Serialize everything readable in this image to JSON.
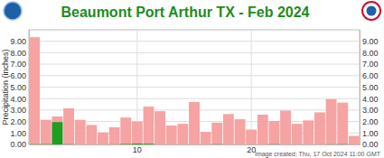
{
  "chart_data": {
    "type": "bar",
    "title": "Beaumont Port Arthur TX - Feb 2024",
    "ylabel": "Precipitation (inches)",
    "annotations": [
      "Image created: Thu, 17 Oct 2024 11:00 GMT"
    ],
    "categories": [
      null,
      null,
      null,
      null,
      null,
      null,
      null,
      null,
      null,
      "10",
      null,
      null,
      null,
      null,
      null,
      null,
      null,
      null,
      null,
      "20",
      null,
      null,
      null,
      null,
      null,
      null,
      null,
      null,
      null
    ],
    "series": [
      {
        "color": "#f5a3a3",
        "values": [
          9.35,
          2.15,
          2.45,
          3.15,
          2.15,
          1.7,
          1.05,
          1.5,
          2.35,
          2.0,
          3.3,
          2.9,
          1.65,
          1.8,
          3.7,
          1.1,
          1.9,
          2.65,
          2.2,
          1.3,
          2.6,
          2.05,
          2.95,
          1.8,
          2.1,
          2.8,
          3.95,
          3.65,
          0.75
        ]
      },
      {
        "color": "#1f9e1f",
        "values": [
          0.02,
          0.03,
          1.95,
          0.02,
          0,
          0,
          0,
          0.01,
          0.04,
          0.08,
          0.06,
          0,
          0,
          0,
          0,
          0,
          0.02,
          0,
          0,
          0,
          0,
          0.02,
          0,
          0,
          0,
          0,
          0.01,
          0.02,
          0
        ]
      }
    ],
    "ylim": [
      0,
      10
    ],
    "yticks": [
      {
        "value": 0,
        "label": "0.00"
      },
      {
        "value": 1,
        "label": "1.00"
      },
      {
        "value": 2,
        "label": "2.00"
      },
      {
        "value": 3,
        "label": "3.00"
      },
      {
        "value": 4,
        "label": "4.00"
      },
      {
        "value": 5,
        "label": "5.00"
      },
      {
        "value": 6,
        "label": "6.00"
      },
      {
        "value": 7,
        "label": "7.00"
      },
      {
        "value": 8,
        "label": "8.00"
      },
      {
        "value": 9,
        "label": "9.00"
      }
    ],
    "grid": true
  }
}
